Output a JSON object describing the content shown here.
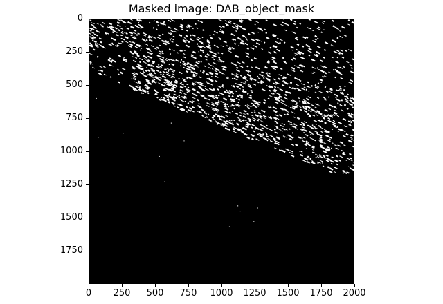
{
  "figure": {
    "title": "Masked image: DAB_object_mask",
    "background_color": "#000000",
    "mask_color": "#ffffff",
    "x_ticks": [
      "0",
      "250",
      "500",
      "750",
      "1000",
      "1250",
      "1500",
      "1750",
      "2000"
    ],
    "y_ticks": [
      "0",
      "250",
      "500",
      "750",
      "1000",
      "1250",
      "1500",
      "1750"
    ]
  }
}
